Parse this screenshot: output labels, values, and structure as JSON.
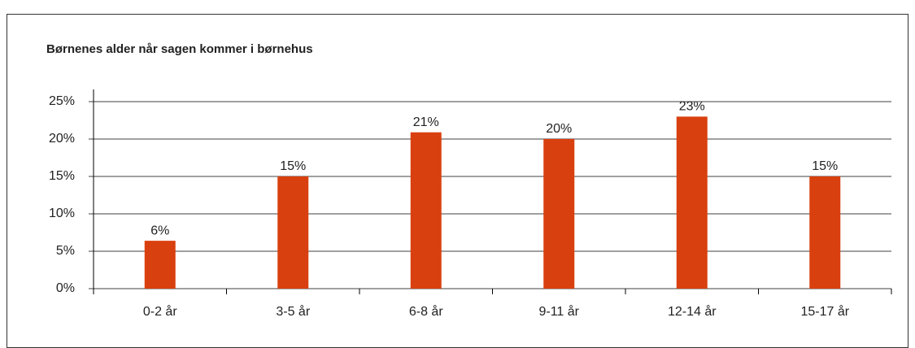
{
  "chart_data": {
    "type": "bar",
    "title": "Børnenes alder når sagen kommer i børnehus",
    "categories": [
      "0-2 år",
      "3-5 år",
      "6-8 år",
      "9-11 år",
      "12-14 år",
      "15-17 år"
    ],
    "values": [
      6.4,
      15,
      20.9,
      20,
      23,
      15
    ],
    "value_labels": [
      "6%",
      "15%",
      "21%",
      "20%",
      "23%",
      "15%"
    ],
    "color": "#d9400f",
    "ylim": [
      0,
      25
    ],
    "yticks": [
      {
        "value": 0,
        "label": "0%"
      },
      {
        "value": 5,
        "label": "5%"
      },
      {
        "value": 10,
        "label": "10%"
      },
      {
        "value": 15,
        "label": "15%"
      },
      {
        "value": 20,
        "label": "20%"
      },
      {
        "value": 25,
        "label": "25%"
      }
    ],
    "grid": true
  }
}
